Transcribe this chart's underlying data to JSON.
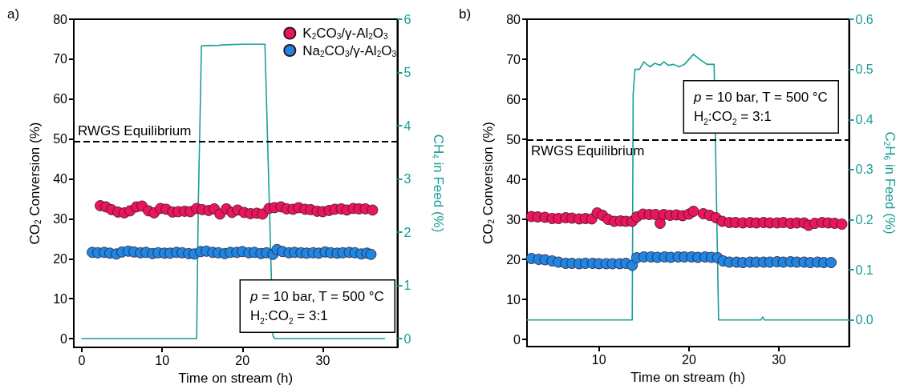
{
  "chart_data": [
    {
      "type": "scatter",
      "title": "a)",
      "xlabel": "Time on stream (h)",
      "ylabel": "CO$_{2}$ Conversion (%)",
      "y2label": "CH$_{4}$ in Feed (%)",
      "xlim": [
        -1,
        39.3
      ],
      "xticks": [
        0,
        10,
        20,
        30
      ],
      "ylim": [
        -2.2,
        80
      ],
      "yticks": [
        0,
        10,
        20,
        30,
        40,
        50,
        60,
        70,
        80
      ],
      "y2lim": [
        -0.165,
        6
      ],
      "y2ticks": [
        0,
        1,
        2,
        3,
        4,
        5,
        6
      ],
      "grid": false,
      "legend": "top right",
      "marker": "circle",
      "ref_lines": [
        {
          "axis": "y",
          "value": 49.3,
          "label": "RWGS Equilibrium",
          "color": "#000000",
          "line_style": "dashed"
        }
      ],
      "annotations": [
        "p = 10 bar, T = 500 °C\nH$_{2}$:CO$_{2}$ = 3:1"
      ],
      "series": [
        {
          "name": "K$_{2}$CO$_{3}$/γ-Al$_{2}$O$_{3}$",
          "type": "scatter",
          "color": "#e8175d",
          "x": [
            2.3,
            3,
            3.7,
            4.5,
            5.3,
            6,
            6.8,
            7.5,
            8.3,
            9,
            9.8,
            10.5,
            11.3,
            12,
            12.8,
            13.5,
            14.3,
            15,
            15.8,
            16.5,
            17.2,
            18,
            18.7,
            19.4,
            20.2,
            21,
            21.8,
            22.5,
            23.3,
            24,
            24.8,
            25.5,
            26.3,
            27,
            27.8,
            28.5,
            29.3,
            30,
            30.8,
            31.5,
            32.3,
            33,
            33.8,
            34.5,
            35.3,
            36.2
          ],
          "values": [
            33.3,
            33,
            32.3,
            31.7,
            31.5,
            32,
            33,
            33.2,
            32,
            31.5,
            32.6,
            32.4,
            31.7,
            31.8,
            31.9,
            31.8,
            32.6,
            32.3,
            32.1,
            32.5,
            31.2,
            32.5,
            31.6,
            32.2,
            31.6,
            31.3,
            31.4,
            31.2,
            32.6,
            32.8,
            33,
            32.5,
            32.4,
            32.8,
            32.4,
            32.3,
            31.9,
            31.8,
            32.1,
            32.4,
            32.5,
            32.2,
            32.6,
            32.5,
            32.5,
            32.2
          ]
        },
        {
          "name": "Na$_{2}$CO$_{3}$/γ-Al$_{2}$O$_{3}$",
          "type": "scatter",
          "color": "#1e87e3",
          "x": [
            1.3,
            2,
            2.8,
            3.5,
            4.3,
            5,
            5.8,
            6.5,
            7.3,
            8,
            8.8,
            9.5,
            10.3,
            11,
            11.8,
            12.5,
            13.3,
            14,
            14.8,
            15.5,
            16.3,
            17,
            17.8,
            18.5,
            19.3,
            20,
            20.8,
            21.5,
            22.3,
            23,
            23.8,
            24.3,
            25,
            25.8,
            26.5,
            27.3,
            28,
            28.8,
            29.5,
            30.3,
            31,
            31.8,
            32.5,
            33.3,
            34,
            34.8,
            35.5,
            36
          ],
          "values": [
            21.6,
            21.5,
            21.6,
            21.4,
            21.2,
            21.7,
            21.9,
            21.7,
            21.5,
            21.6,
            21.3,
            21.5,
            21.4,
            21.4,
            21.6,
            21.5,
            21.3,
            21.2,
            21.8,
            21.9,
            21.6,
            21.5,
            21.3,
            21.6,
            21.6,
            21.8,
            21.5,
            21.6,
            21.3,
            21.5,
            21.1,
            22.3,
            21.8,
            21.5,
            21.6,
            21.5,
            21.4,
            21.5,
            21.4,
            21.7,
            21.5,
            21.4,
            21.5,
            21.6,
            21.5,
            21.2,
            21.4,
            21.1
          ]
        },
        {
          "type": "line",
          "axis": "y2",
          "color": "#1a9e96",
          "marker": "none",
          "x": [
            0,
            14.3,
            14.5,
            14.9,
            17,
            18,
            20,
            22.8,
            23.8,
            24,
            37.7
          ],
          "values": [
            0,
            0,
            2.5,
            5.5,
            5.51,
            5.52,
            5.53,
            5.53,
            0.05,
            0,
            0
          ]
        }
      ]
    },
    {
      "type": "scatter",
      "title": "b)",
      "xlabel": "Time on stream (h)",
      "ylabel": "CO$_{2}$ Conversion (%)",
      "y2label": "C$_{2}$H$_{6}$ in Feed (%)",
      "xlim": [
        2,
        37.8
      ],
      "xticks": [
        10,
        20,
        30
      ],
      "ylim": [
        -1.8,
        80
      ],
      "yticks": [
        0,
        10,
        20,
        30,
        40,
        50,
        60,
        70,
        80
      ],
      "y2lim": [
        -0.053,
        0.6
      ],
      "y2ticks": [
        {
          "value": 0,
          "label": "0.0"
        },
        0.1,
        0.2,
        0.3,
        0.4,
        0.5,
        0.6
      ],
      "grid": false,
      "legend": false,
      "marker": "circle",
      "ref_lines": [
        {
          "axis": "y",
          "value": 49.8,
          "label": "RWGS Equilibrium",
          "color": "#000000",
          "line_style": "dashed"
        }
      ],
      "annotations": [
        "p = 10 bar, T = 500 °C\nH$_{2}$:CO$_{2}$ = 3:1"
      ],
      "series": [
        {
          "type": "scatter",
          "color": "#e8175d",
          "x": [
            2.5,
            3.2,
            4,
            4.8,
            5.5,
            6.3,
            7,
            7.8,
            8.5,
            9.2,
            9.8,
            10.4,
            11,
            11.7,
            12.4,
            13,
            13.7,
            14.2,
            14.9,
            15.6,
            16.3,
            16.8,
            17.2,
            17.9,
            18.6,
            19.3,
            20,
            20.5,
            21.6,
            22.3,
            23,
            23.7,
            24.5,
            25.2,
            26,
            26.8,
            27.5,
            28.3,
            29,
            29.8,
            30.5,
            31.3,
            32,
            32.8,
            33.3,
            34,
            34.8,
            35.5,
            36.2,
            37
          ],
          "values": [
            30.7,
            30.6,
            30.5,
            30.2,
            30.2,
            30.4,
            30.3,
            30.1,
            30.2,
            30.1,
            31.6,
            31,
            30,
            29.5,
            29.6,
            29.5,
            29.5,
            30.6,
            31.3,
            31.2,
            31.2,
            29,
            31.2,
            31,
            31.1,
            30.9,
            31.3,
            32,
            31.4,
            31,
            30.4,
            29.5,
            29.2,
            29.2,
            29.1,
            29.2,
            29.1,
            29.2,
            29.1,
            29.1,
            29.2,
            29,
            29.1,
            29.1,
            28.5,
            29,
            29.2,
            29.1,
            29,
            28.8
          ]
        },
        {
          "type": "scatter",
          "color": "#1e87e3",
          "x": [
            2.5,
            3.3,
            4,
            4.8,
            5.5,
            6.3,
            7,
            7.8,
            8.5,
            9.3,
            10,
            10.8,
            11.5,
            12.3,
            13,
            13.7,
            14.2,
            15,
            15.8,
            16.5,
            17.3,
            18,
            18.8,
            19.5,
            20.3,
            21,
            21.8,
            22.5,
            23.2,
            23.8,
            24.5,
            25.3,
            26,
            26.8,
            27.5,
            28.3,
            29,
            29.8,
            30.5,
            31.3,
            32,
            32.8,
            33.5,
            34.3,
            35,
            35.8
          ],
          "values": [
            20.2,
            20,
            19.9,
            19.6,
            19.3,
            19,
            19,
            18.9,
            19,
            19,
            18.9,
            18.9,
            18.9,
            18.9,
            19,
            18.5,
            20.4,
            20.6,
            20.6,
            20.5,
            20.6,
            20.5,
            20.6,
            20.6,
            20.6,
            20.5,
            20.6,
            20.5,
            20.4,
            19.6,
            19.3,
            19.3,
            19.2,
            19.3,
            19.3,
            19.3,
            19.3,
            19.4,
            19.3,
            19.4,
            19.3,
            19.3,
            19.2,
            19.3,
            19.2,
            19.2
          ]
        },
        {
          "type": "line",
          "axis": "y2",
          "color": "#1a9e96",
          "marker": "none",
          "x": [
            2,
            13.7,
            13.8,
            14,
            14.5,
            15,
            15.3,
            15.7,
            16.2,
            16.8,
            17.2,
            17.7,
            18.3,
            18.9,
            19.5,
            20.5,
            21.2,
            22,
            22.8,
            23.3,
            23.6,
            28,
            28.2,
            28.4,
            37.8
          ],
          "values": [
            0,
            0,
            0.45,
            0.5,
            0.5,
            0.515,
            0.51,
            0.505,
            0.512,
            0.508,
            0.515,
            0.508,
            0.51,
            0.505,
            0.51,
            0.53,
            0.52,
            0.51,
            0.51,
            0,
            0,
            0,
            0.006,
            0,
            0
          ]
        }
      ]
    }
  ]
}
